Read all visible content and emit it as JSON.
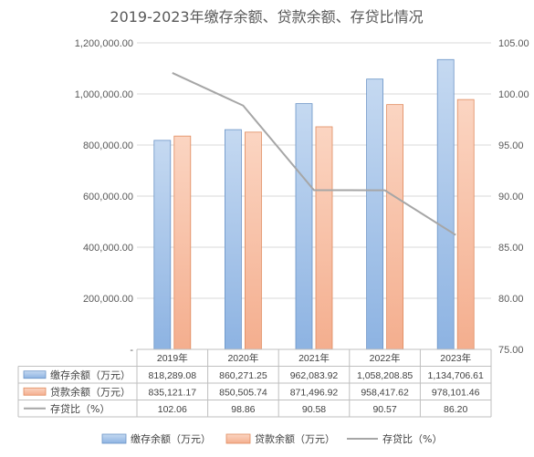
{
  "chart_data": {
    "type": "bar",
    "title": "2019-2023年缴存余额、贷款余额、存贷比情况",
    "categories": [
      "2019年",
      "2020年",
      "2021年",
      "2022年",
      "2023年"
    ],
    "series": [
      {
        "name": "缴存余额（万元）",
        "type": "bar",
        "axis": "left",
        "color": "#8db3e2",
        "values": [
          818289.08,
          860271.25,
          962083.92,
          1058208.85,
          1134706.61
        ],
        "labels": [
          "818,289.08",
          "860,271.25",
          "962,083.92",
          "1,058,208.85",
          "1,134,706.61"
        ]
      },
      {
        "name": "贷款余额（万元）",
        "type": "bar",
        "axis": "left",
        "color": "#f4ae8e",
        "values": [
          835121.17,
          850505.74,
          871496.92,
          958417.62,
          978101.46
        ],
        "labels": [
          "835,121.17",
          "850,505.74",
          "871,496.92",
          "958,417.62",
          "978,101.46"
        ]
      },
      {
        "name": "存贷比（%）",
        "type": "line",
        "axis": "right",
        "color": "#a6a6a6",
        "values": [
          102.06,
          98.86,
          90.58,
          90.57,
          86.2
        ],
        "labels": [
          "102.06",
          "98.86",
          "90.58",
          "90.57",
          "86.20"
        ]
      }
    ],
    "left_axis": {
      "ylim": [
        0,
        1200000
      ],
      "ticks": [
        "-",
        "200,000.00",
        "400,000.00",
        "600,000.00",
        "800,000.00",
        "1,000,000.00",
        "1,200,000.00"
      ]
    },
    "right_axis": {
      "ylim": [
        75,
        105
      ],
      "ticks": [
        "75.00",
        "80.00",
        "85.00",
        "90.00",
        "95.00",
        "100.00",
        "105.00"
      ]
    },
    "grid": true,
    "legend": "bottom",
    "data_table": true
  }
}
